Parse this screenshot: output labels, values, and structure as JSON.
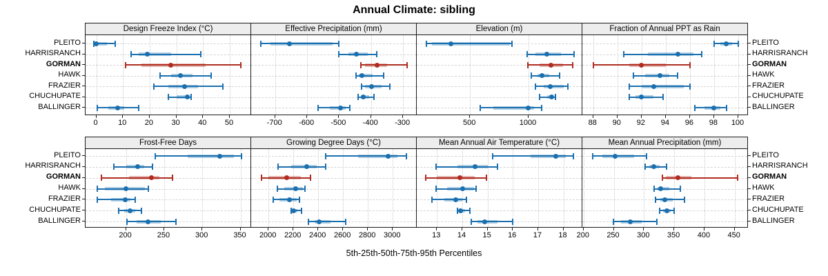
{
  "chart_data": {
    "type": "scatter",
    "subtype": "percentile-interval-dotplot",
    "title": "Annual Climate: sibling",
    "caption": "5th-25th-50th-75th-95th Percentiles",
    "percentiles": [
      5,
      25,
      50,
      75,
      95
    ],
    "grid": true,
    "legend_position": "none",
    "sites": [
      "PLEITO",
      "HARRISRANCH",
      "GORMAN",
      "HAWK",
      "FRAZIER",
      "CHUCHUPATE",
      "BALLINGER"
    ],
    "highlighted_site": "GORMAN",
    "colors": {
      "default": "#1a6faf",
      "highlight": "#b02c20",
      "strip_bg": "#ededed",
      "grid": "#cccccc"
    },
    "panels": [
      {
        "label": "Design Freeze Index (°C)",
        "xlim": [
          -4,
          58
        ],
        "ticks": [
          0,
          10,
          20,
          30,
          40,
          50
        ],
        "values": {
          "PLEITO": [
            -0.8,
            -0.3,
            0,
            4,
            7
          ],
          "HARRISRANCH": [
            13,
            16,
            19,
            28,
            39
          ],
          "GORMAN": [
            11,
            17,
            28,
            41,
            54
          ],
          "HAWK": [
            24,
            28,
            31.5,
            36,
            43
          ],
          "FRAZIER": [
            21.5,
            27,
            33,
            38,
            47.5
          ],
          "CHUCHUPATE": [
            27,
            30,
            34,
            35,
            35.5
          ],
          "BALLINGER": [
            0.5,
            4.5,
            8,
            10.5,
            16
          ]
        }
      },
      {
        "label": "Effective Precipitation (mm)",
        "xlim": [
          -775,
          -257
        ],
        "ticks": [
          -700,
          -600,
          -500,
          -400,
          -300
        ],
        "values": {
          "PLEITO": [
            -745,
            -715,
            -655,
            -520,
            -500
          ],
          "HARRISRANCH": [
            -500,
            -470,
            -445,
            -410,
            -382
          ],
          "GORMAN": [
            -432,
            -418,
            -381,
            -350,
            -287
          ],
          "HAWK": [
            -446,
            -438,
            -428,
            -396,
            -360
          ],
          "FRAZIER": [
            -430,
            -418,
            -399,
            -366,
            -341
          ],
          "CHUCHUPATE": [
            -440,
            -432,
            -424,
            -406,
            -392
          ],
          "BALLINGER": [
            -566,
            -530,
            -496,
            -480,
            -467
          ]
        }
      },
      {
        "label": "Elevation (m)",
        "xlim": [
          45,
          1460
        ],
        "ticks": [
          500,
          1000
        ],
        "values": {
          "PLEITO": [
            130,
            175,
            337,
            840,
            857
          ],
          "HARRISRANCH": [
            990,
            1060,
            1155,
            1275,
            1388
          ],
          "GORMAN": [
            995,
            1095,
            1190,
            1295,
            1375
          ],
          "HAWK": [
            1025,
            1075,
            1115,
            1180,
            1264
          ],
          "FRAZIER": [
            1060,
            1130,
            1185,
            1298,
            1333
          ],
          "CHUCHUPATE": [
            1095,
            1160,
            1200,
            1213,
            1230
          ],
          "BALLINGER": [
            590,
            700,
            995,
            1045,
            1110
          ]
        }
      },
      {
        "label": "Fraction of Annual PPT as Rain",
        "xlim": [
          87.1,
          100.8
        ],
        "ticks": [
          88,
          90,
          92,
          94,
          96,
          98,
          100
        ],
        "values": {
          "PLEITO": [
            98,
            98.5,
            99,
            99.5,
            100
          ],
          "HARRISRANCH": [
            90.5,
            92.5,
            95,
            96.3,
            97
          ],
          "GORMAN": [
            88,
            91,
            92,
            94,
            96
          ],
          "HAWK": [
            91.3,
            92.3,
            93.5,
            94.3,
            95
          ],
          "FRAZIER": [
            91,
            92,
            93,
            95.5,
            96
          ],
          "CHUCHUPATE": [
            91,
            91.5,
            92,
            93,
            93.8
          ],
          "BALLINGER": [
            96.4,
            97.2,
            98,
            98.5,
            99
          ]
        }
      },
      {
        "label": "Frost-Free Days",
        "xlim": [
          147,
          364
        ],
        "ticks": [
          200,
          250,
          300,
          350
        ],
        "values": {
          "PLEITO": [
            238,
            281,
            323,
            341,
            351
          ],
          "HARRISRANCH": [
            184,
            200,
            215,
            224,
            235
          ],
          "GORMAN": [
            168,
            204,
            233,
            244,
            261
          ],
          "HAWK": [
            162,
            172,
            200,
            225,
            229
          ],
          "FRAZIER": [
            162,
            180,
            199,
            206,
            212
          ],
          "CHUCHUPATE": [
            190,
            198,
            205,
            212,
            220
          ],
          "BALLINGER": [
            201,
            214,
            229,
            246,
            265
          ]
        }
      },
      {
        "label": "Growing Degree Days (°C)",
        "xlim": [
          1860,
          3193
        ],
        "ticks": [
          2000,
          2200,
          2400,
          2600,
          2800,
          3000
        ],
        "values": {
          "PLEITO": [
            2462,
            2720,
            2960,
            3040,
            3110
          ],
          "HARRISRANCH": [
            2075,
            2180,
            2305,
            2390,
            2462
          ],
          "GORMAN": [
            1941,
            1998,
            2145,
            2262,
            2335
          ],
          "HAWK": [
            2070,
            2128,
            2218,
            2278,
            2295
          ],
          "FRAZIER": [
            2035,
            2090,
            2168,
            2228,
            2250
          ],
          "CHUCHUPATE": [
            2180,
            2190,
            2202,
            2235,
            2264
          ],
          "BALLINGER": [
            2320,
            2368,
            2405,
            2498,
            2618
          ]
        }
      },
      {
        "label": "Mean Annual Air Temperature (°C)",
        "xlim": [
          12.2,
          18.75
        ],
        "ticks": [
          13,
          14,
          15,
          16,
          17,
          18
        ],
        "values": {
          "PLEITO": [
            15.2,
            16.7,
            17.7,
            18.1,
            18.4
          ],
          "HARRISRANCH": [
            12.95,
            13.8,
            14.5,
            15.0,
            15.4
          ],
          "GORMAN": [
            12.55,
            13.0,
            13.9,
            14.5,
            14.95
          ],
          "HAWK": [
            12.95,
            13.4,
            14.0,
            14.45,
            14.55
          ],
          "FRAZIER": [
            12.8,
            13.3,
            13.75,
            14.0,
            14.15
          ],
          "CHUCHUPATE": [
            13.8,
            13.87,
            13.93,
            14.1,
            14.3
          ],
          "BALLINGER": [
            14.35,
            14.6,
            14.9,
            15.4,
            16.0
          ]
        }
      },
      {
        "label": "Mean Annual Precipitation (mm)",
        "xlim": [
          198,
          472
        ],
        "ticks": [
          200,
          250,
          300,
          350,
          400,
          450
        ],
        "values": {
          "PLEITO": [
            215,
            231,
            252,
            284,
            304
          ],
          "HARRISRANCH": [
            302,
            309,
            316,
            326,
            337
          ],
          "GORMAN": [
            330,
            336,
            356,
            378,
            455
          ],
          "HAWK": [
            317,
            322,
            327,
            342,
            360
          ],
          "FRAZIER": [
            319,
            327,
            334,
            348,
            367
          ],
          "CHUCHUPATE": [
            326,
            332,
            338,
            344,
            350
          ],
          "BALLINGER": [
            249,
            262,
            277,
            296,
            321
          ]
        }
      }
    ]
  }
}
